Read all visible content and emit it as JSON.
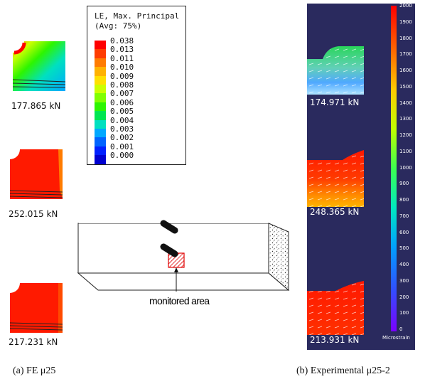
{
  "fe_results": [
    {
      "load": "177.865 kN",
      "state": "contour-low"
    },
    {
      "load": "252.015 kN",
      "state": "saturated"
    },
    {
      "load": "217.231 kN",
      "state": "saturated"
    }
  ],
  "legend": {
    "title_line1": "LE, Max. Principal",
    "title_line2": "(Avg: 75%)",
    "entries": [
      {
        "value": "0.038",
        "color": "#ff0000"
      },
      {
        "value": "0.013",
        "color": "#ff3c00"
      },
      {
        "value": "0.011",
        "color": "#ff7b00"
      },
      {
        "value": "0.010",
        "color": "#ffb200"
      },
      {
        "value": "0.009",
        "color": "#ffe000"
      },
      {
        "value": "0.008",
        "color": "#ccff00"
      },
      {
        "value": "0.007",
        "color": "#80ff00"
      },
      {
        "value": "0.006",
        "color": "#2df500"
      },
      {
        "value": "0.005",
        "color": "#00e650"
      },
      {
        "value": "0.004",
        "color": "#00e0c0"
      },
      {
        "value": "0.003",
        "color": "#00a8ff"
      },
      {
        "value": "0.002",
        "color": "#0064ff"
      },
      {
        "value": "0.001",
        "color": "#0020ff"
      },
      {
        "value": "0.000",
        "color": "#0000d0"
      }
    ]
  },
  "experimental": {
    "results": [
      {
        "load": "174.971 kN"
      },
      {
        "load": "248.365 kN"
      },
      {
        "load": "213.931 kN"
      }
    ],
    "colorbar_ticks": [
      "2000",
      "1900",
      "1800",
      "1700",
      "1600",
      "1500",
      "1400",
      "1300",
      "1200",
      "1100",
      "1000",
      "900",
      "800",
      "700",
      "600",
      "500",
      "400",
      "300",
      "200",
      "100",
      "0"
    ],
    "colorbar_unit": "Microstrain"
  },
  "annotation": "monitored area",
  "captions": {
    "left": "(a) FE μ25",
    "right": "(b) Experimental μ25-2"
  }
}
